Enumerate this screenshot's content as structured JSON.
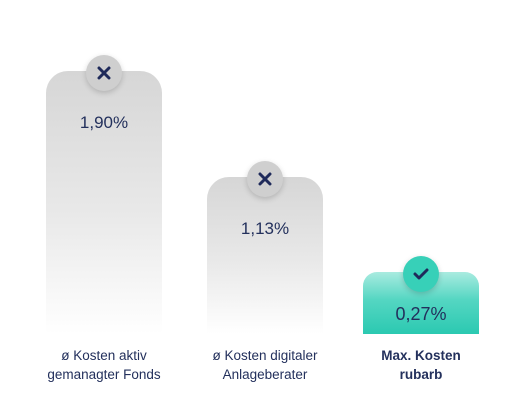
{
  "chart_data": {
    "type": "bar",
    "title": "",
    "xlabel": "",
    "ylabel": "",
    "ylim": [
      0,
      2.1
    ],
    "categories": [
      "ø Kosten aktiv\ngemanagter Fonds",
      "ø Kosten digitaler\nAnlageberater",
      "Max. Kosten\nrubarb"
    ],
    "values": [
      1.9,
      1.13,
      0.27
    ],
    "value_labels": [
      "1,90%",
      "1,13%",
      "0,27%"
    ],
    "markers": [
      "x-icon",
      "x-icon",
      "check-icon"
    ],
    "highlight_index": 2,
    "grid": false,
    "legend": "none"
  },
  "colors": {
    "bar_gray": "#d6d6d6",
    "bar_teal": "#2bc9b1",
    "badge_gray": "#cfcfcf",
    "badge_teal": "#37d0b8",
    "text_navy": "#23305c"
  }
}
